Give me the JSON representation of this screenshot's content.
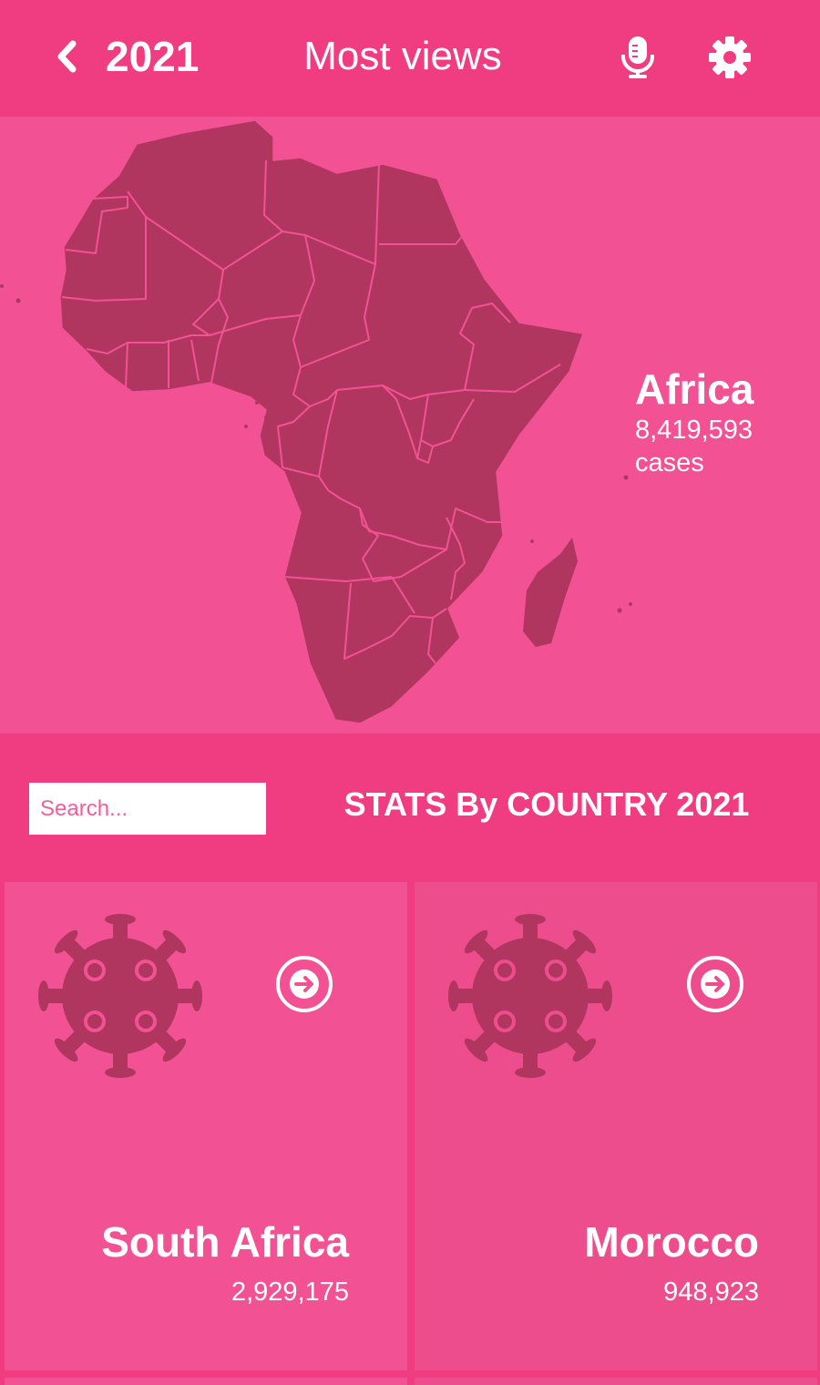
{
  "header": {
    "year": "2021",
    "title": "Most views",
    "icons": [
      "chevron-left-icon",
      "microphone-icon",
      "gear-icon"
    ]
  },
  "map": {
    "region": "Africa",
    "cases": "8,419,593",
    "unit": "cases"
  },
  "stats": {
    "search_placeholder": "Search...",
    "search_value": "",
    "heading": "STATS By COUNTRY 2021"
  },
  "countries": [
    {
      "name": "South Africa",
      "cases": "2,929,175"
    },
    {
      "name": "Morocco",
      "cases": "948,923"
    }
  ],
  "colors": {
    "header_bg": "#f03d82",
    "map_bg": "#f25293",
    "land": "#b0365f",
    "card_alt": "#ee4d8d",
    "text": "#ffffff"
  }
}
